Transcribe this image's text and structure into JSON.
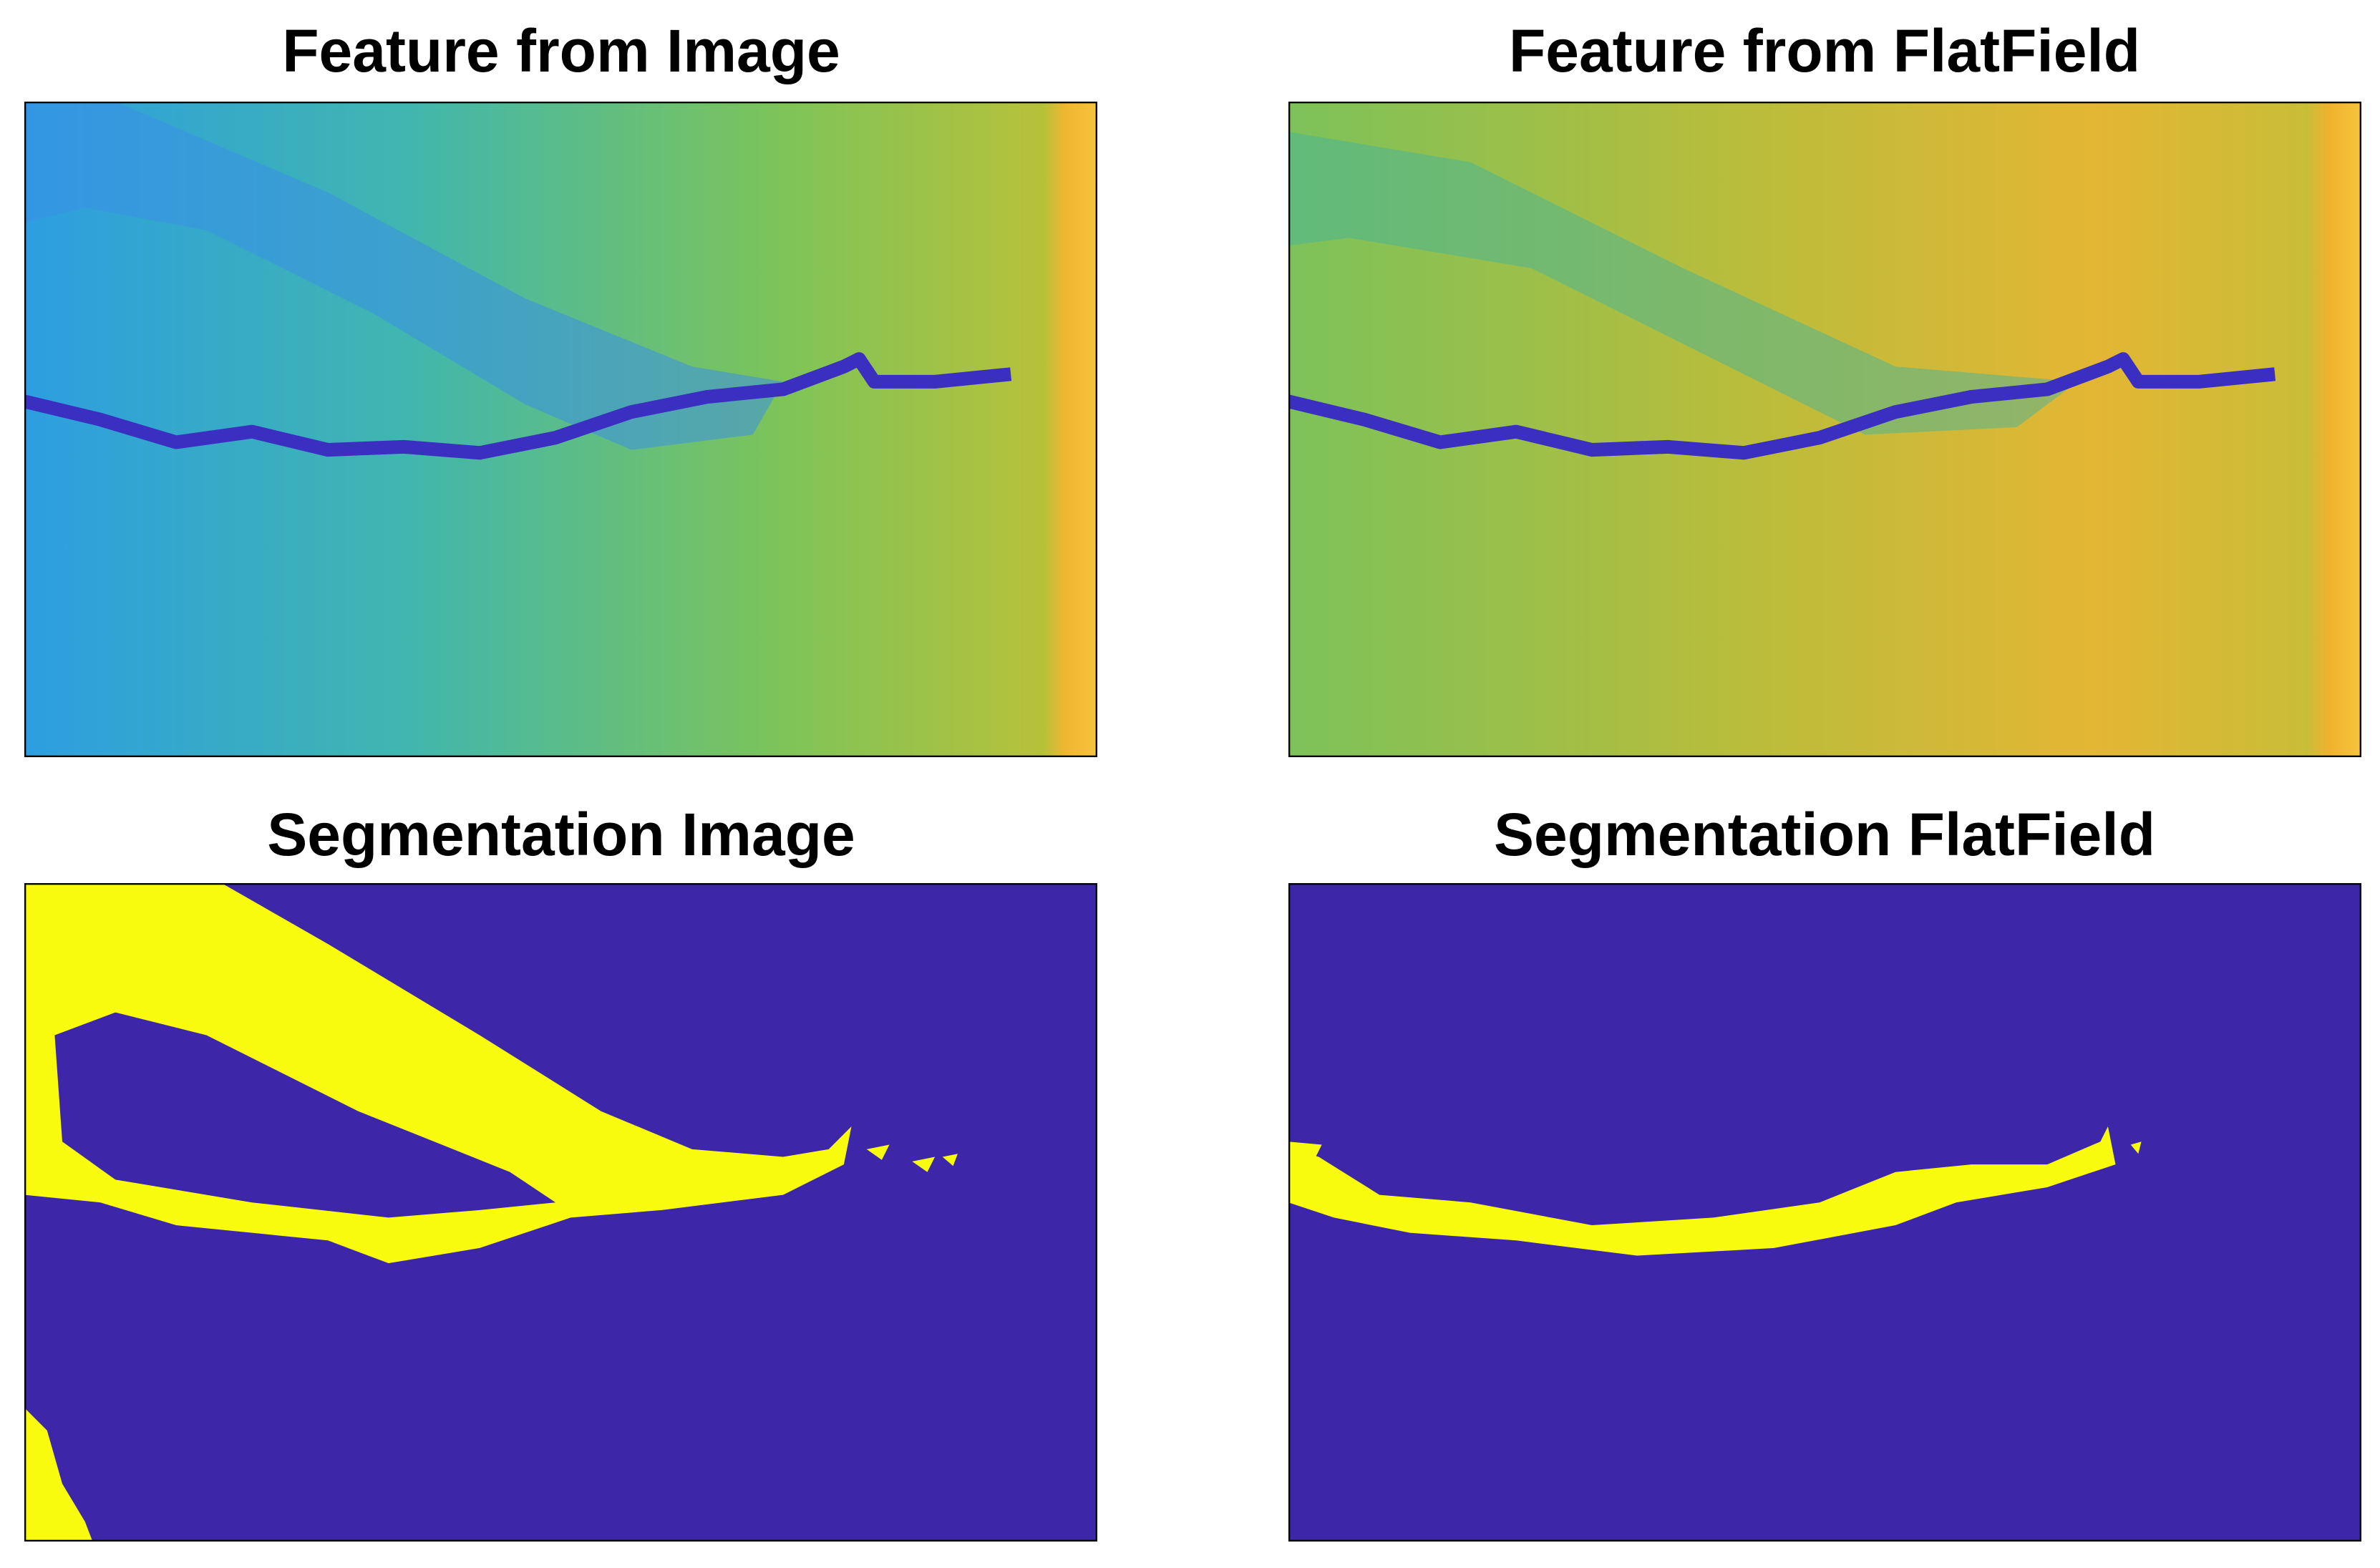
{
  "panels": [
    {
      "title": "Feature from Image"
    },
    {
      "title": "Feature from FlatField"
    },
    {
      "title": "Segmentation Image"
    },
    {
      "title": "Segmentation FlatField"
    }
  ]
}
